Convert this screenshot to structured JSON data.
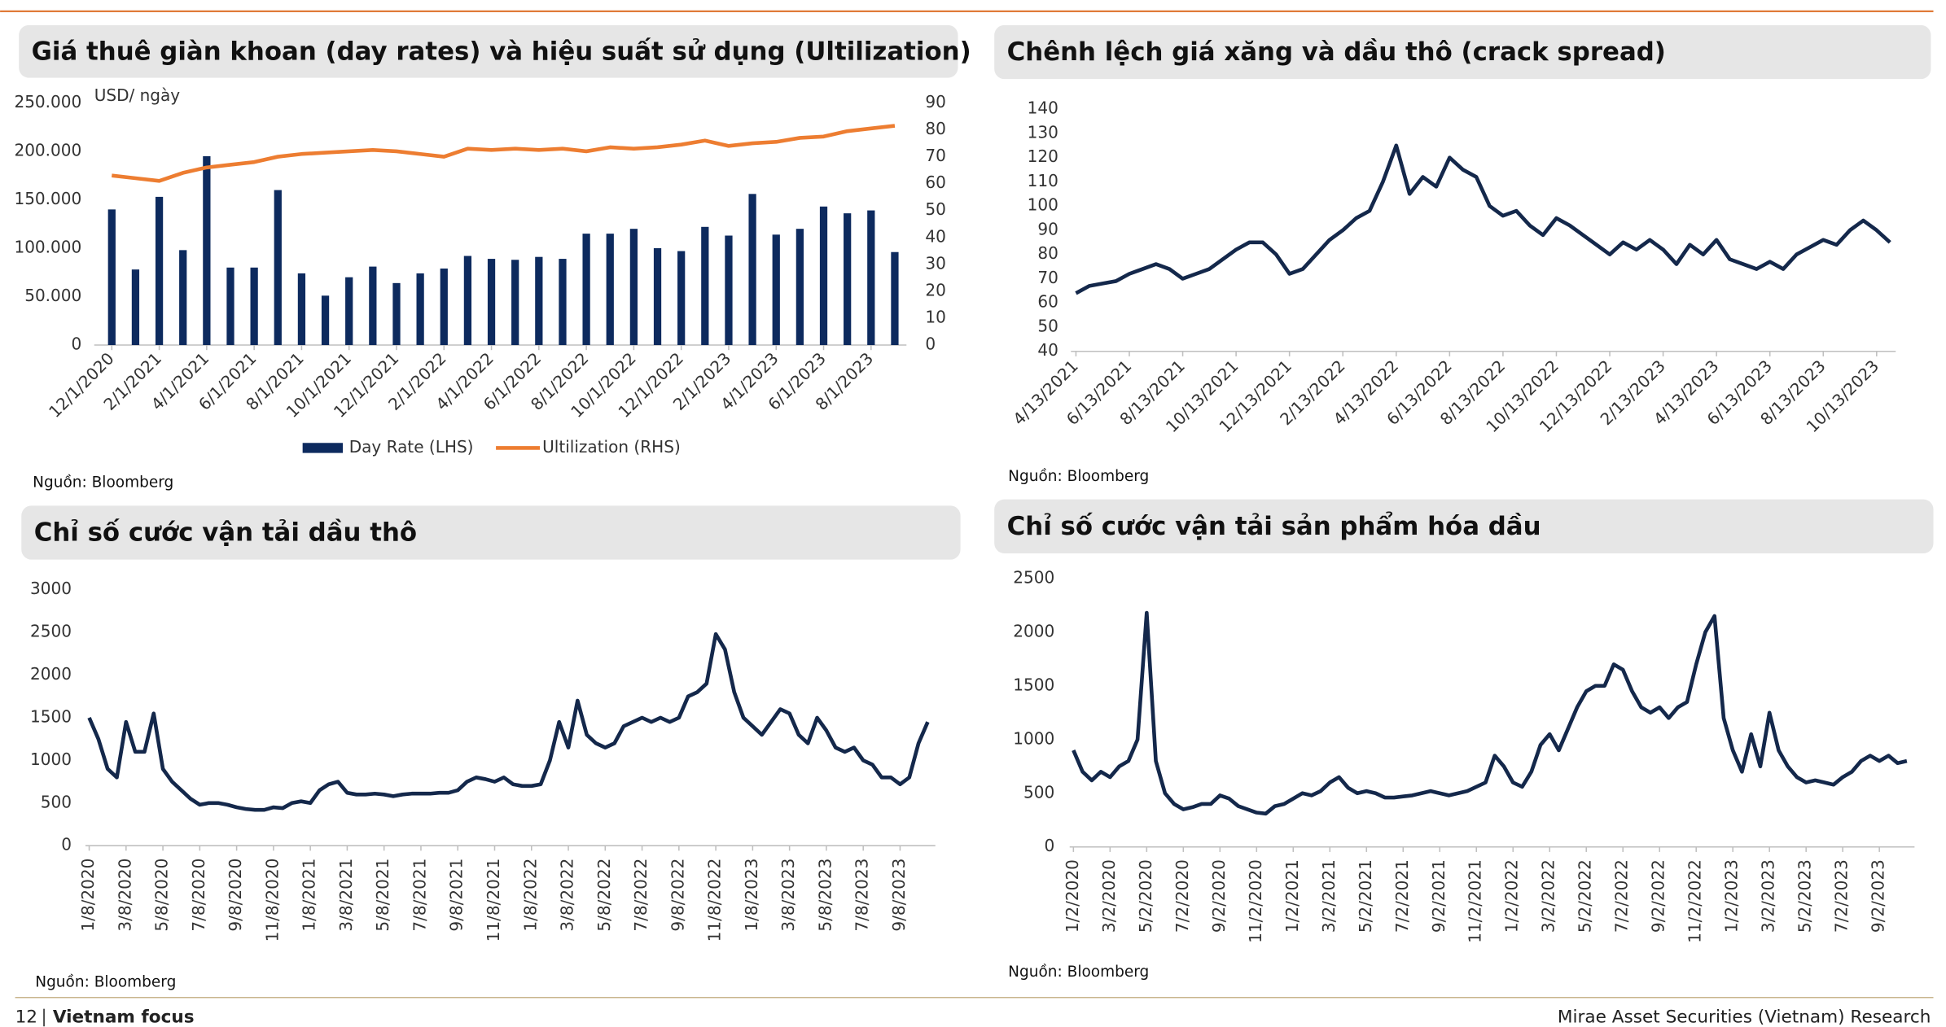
{
  "chart_data": [
    {
      "type": "bar",
      "title": "Giá thuê giàn khoan (day rates) và hiệu suất sử dụng (Ultilization)",
      "y_label": "USD/ ngày",
      "source": "Nguồn: Bloomberg",
      "categories": [
        "12/1/2020",
        null,
        "2/1/2021",
        null,
        "4/1/2021",
        null,
        "6/1/2021",
        null,
        "8/1/2021",
        null,
        "10/1/2021",
        null,
        "12/1/2021",
        null,
        "2/1/2022",
        null,
        "4/1/2022",
        null,
        "6/1/2022",
        null,
        "8/1/2022",
        null,
        "10/1/2022",
        null,
        "12/1/2022",
        null,
        "2/1/2023",
        null,
        "4/1/2023",
        null,
        "6/1/2023",
        null,
        "8/1/2023",
        null
      ],
      "series": [
        {
          "name": "Day Rate (LHS)",
          "color": "#0d2a5e",
          "values": [
            140000,
            78000,
            153000,
            98000,
            195000,
            80000,
            80000,
            160000,
            74000,
            51000,
            70000,
            81000,
            64000,
            74000,
            79000,
            92000,
            89000,
            88000,
            91000,
            89000,
            115000,
            115000,
            120000,
            100000,
            97000,
            122000,
            113000,
            156000,
            114000,
            120000,
            143000,
            136000,
            139000,
            96000
          ]
        },
        {
          "name": "Ultilization (RHS)",
          "type": "line",
          "axis": "y2",
          "color": "#ed7d31",
          "values": [
            63,
            62,
            61,
            64,
            66,
            67,
            68,
            70,
            71,
            71.5,
            72,
            72.5,
            72,
            71,
            70,
            73,
            72.5,
            73,
            72.5,
            73,
            72,
            73.5,
            73,
            73.5,
            74.5,
            76,
            74,
            75,
            75.5,
            77,
            77.5,
            79.5,
            80.5,
            81.5
          ]
        }
      ],
      "ylim": [
        0,
        250000
      ],
      "yticks": [
        0,
        {
          "value": 50000,
          "label": "50.000"
        },
        {
          "value": 100000,
          "label": "100.000"
        },
        {
          "value": 150000,
          "label": "150.000"
        },
        {
          "value": 200000,
          "label": "200.000"
        },
        {
          "value": 250000,
          "label": "250.000"
        }
      ],
      "y2lim": [
        0,
        90
      ],
      "y2ticks": [
        0,
        10,
        20,
        30,
        40,
        50,
        60,
        70,
        80,
        90
      ],
      "legend": "bottom"
    },
    {
      "type": "line",
      "title": "Chênh lệch giá xăng và dầu thô (crack spread)",
      "source": "Nguồn: Bloomberg",
      "color": "#14284b",
      "categories": [
        "4/13/2021",
        null,
        null,
        null,
        "6/13/2021",
        null,
        null,
        null,
        "8/13/2021",
        null,
        null,
        null,
        "10/13/2021",
        null,
        null,
        null,
        "12/13/2021",
        null,
        null,
        null,
        "2/13/2022",
        null,
        null,
        null,
        "4/13/2022",
        null,
        null,
        null,
        "6/13/2022",
        null,
        null,
        null,
        "8/13/2022",
        null,
        null,
        null,
        "10/13/2022",
        null,
        null,
        null,
        "12/13/2022",
        null,
        null,
        null,
        "2/13/2023",
        null,
        null,
        null,
        "4/13/2023",
        null,
        null,
        null,
        "6/13/2023",
        null,
        null,
        null,
        "8/13/2023",
        null,
        null,
        null,
        "10/13/2023",
        null
      ],
      "values": [
        64,
        67,
        68,
        69,
        72,
        74,
        76,
        74,
        70,
        72,
        74,
        78,
        82,
        85,
        85,
        80,
        72,
        74,
        80,
        86,
        90,
        95,
        98,
        110,
        125,
        105,
        112,
        108,
        120,
        115,
        112,
        100,
        96,
        98,
        92,
        88,
        95,
        92,
        88,
        84,
        80,
        85,
        82,
        86,
        82,
        76,
        84,
        80,
        86,
        78,
        76,
        74,
        77,
        74,
        80,
        83,
        86,
        84,
        90,
        94,
        90,
        85
      ],
      "ylim": [
        40,
        140
      ],
      "yticks": [
        40,
        50,
        60,
        70,
        80,
        90,
        100,
        110,
        120,
        130,
        140
      ]
    },
    {
      "type": "line",
      "title": "Chỉ số cước vận tải dầu thô",
      "source": "Nguồn: Bloomberg",
      "color": "#14284b",
      "categories": [
        "1/8/2020",
        null,
        null,
        null,
        "3/8/2020",
        null,
        null,
        null,
        "5/8/2020",
        null,
        null,
        null,
        "7/8/2020",
        null,
        null,
        null,
        "9/8/2020",
        null,
        null,
        null,
        "11/8/2020",
        null,
        null,
        null,
        "1/8/2021",
        null,
        null,
        null,
        "3/8/2021",
        null,
        null,
        null,
        "5/8/2021",
        null,
        null,
        null,
        "7/8/2021",
        null,
        null,
        null,
        "9/8/2021",
        null,
        null,
        null,
        "11/8/2021",
        null,
        null,
        null,
        "1/8/2022",
        null,
        null,
        null,
        "3/8/2022",
        null,
        null,
        null,
        "5/8/2022",
        null,
        null,
        null,
        "7/8/2022",
        null,
        null,
        null,
        "9/8/2022",
        null,
        null,
        null,
        "11/8/2022",
        null,
        null,
        null,
        "1/8/2023",
        null,
        null,
        null,
        "3/8/2023",
        null,
        null,
        null,
        "5/8/2023",
        null,
        null,
        null,
        "7/8/2023",
        null,
        null,
        null,
        "9/8/2023",
        null,
        null,
        null
      ],
      "values": [
        1500,
        1250,
        900,
        800,
        1450,
        1100,
        1100,
        1550,
        900,
        750,
        650,
        550,
        480,
        500,
        500,
        480,
        450,
        430,
        420,
        420,
        450,
        440,
        500,
        520,
        500,
        650,
        720,
        750,
        620,
        600,
        600,
        610,
        600,
        580,
        600,
        610,
        610,
        610,
        620,
        620,
        650,
        750,
        800,
        780,
        750,
        800,
        720,
        700,
        700,
        720,
        1000,
        1450,
        1150,
        1700,
        1300,
        1200,
        1150,
        1200,
        1400,
        1450,
        1500,
        1450,
        1500,
        1450,
        1500,
        1750,
        1800,
        1900,
        2480,
        2300,
        1800,
        1500,
        1400,
        1300,
        1450,
        1600,
        1550,
        1300,
        1200,
        1500,
        1350,
        1150,
        1100,
        1150,
        1000,
        950,
        800,
        800,
        720,
        800,
        1200,
        1450
      ],
      "ylim": [
        0,
        3000
      ],
      "yticks": [
        0,
        500,
        1000,
        1500,
        2000,
        2500,
        3000
      ]
    },
    {
      "type": "line",
      "title": "Chỉ số cước vận tải sản phẩm hóa dầu",
      "source": "Nguồn: Bloomberg",
      "color": "#14284b",
      "categories": [
        "1/2/2020",
        null,
        null,
        null,
        "3/2/2020",
        null,
        null,
        null,
        "5/2/2020",
        null,
        null,
        null,
        "7/2/2020",
        null,
        null,
        null,
        "9/2/2020",
        null,
        null,
        null,
        "11/2/2020",
        null,
        null,
        null,
        "1/2/2021",
        null,
        null,
        null,
        "3/2/2021",
        null,
        null,
        null,
        "5/2/2021",
        null,
        null,
        null,
        "7/2/2021",
        null,
        null,
        null,
        "9/2/2021",
        null,
        null,
        null,
        "11/2/2021",
        null,
        null,
        null,
        "1/2/2022",
        null,
        null,
        null,
        "3/2/2022",
        null,
        null,
        null,
        "5/2/2022",
        null,
        null,
        null,
        "7/2/2022",
        null,
        null,
        null,
        "9/2/2022",
        null,
        null,
        null,
        "11/2/2022",
        null,
        null,
        null,
        "1/2/2023",
        null,
        null,
        null,
        "3/2/2023",
        null,
        null,
        null,
        "5/2/2023",
        null,
        null,
        null,
        "7/2/2023",
        null,
        null,
        null,
        "9/2/2023",
        null,
        null,
        null
      ],
      "values": [
        900,
        700,
        620,
        700,
        650,
        750,
        800,
        1000,
        2180,
        800,
        500,
        400,
        350,
        370,
        400,
        400,
        480,
        450,
        380,
        350,
        320,
        310,
        380,
        400,
        450,
        500,
        480,
        520,
        600,
        650,
        550,
        500,
        520,
        500,
        460,
        460,
        470,
        480,
        500,
        520,
        500,
        480,
        500,
        520,
        560,
        600,
        850,
        750,
        600,
        560,
        700,
        950,
        1050,
        900,
        1100,
        1300,
        1450,
        1500,
        1500,
        1700,
        1650,
        1450,
        1300,
        1250,
        1300,
        1200,
        1300,
        1350,
        1700,
        2000,
        2150,
        1200,
        900,
        700,
        1050,
        750,
        1250,
        900,
        750,
        650,
        600,
        620,
        600,
        580,
        650,
        700,
        800,
        850,
        800,
        850,
        780,
        800
      ],
      "ylim": [
        0,
        2500
      ],
      "yticks": [
        0,
        500,
        1000,
        1500,
        2000,
        2500
      ]
    }
  ],
  "footer": {
    "page": "12",
    "section": "Vietnam focus",
    "publisher": "Mirae Asset Securities (Vietnam) Research"
  }
}
